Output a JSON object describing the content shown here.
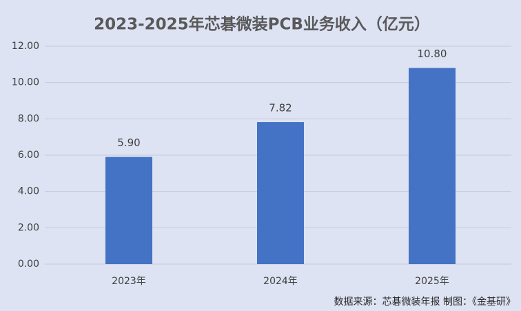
{
  "chart_data": {
    "type": "bar",
    "title": "2023-2025年芯碁微装PCB业务收入（亿元）",
    "categories": [
      "2023年",
      "2024年",
      "2025年"
    ],
    "values": [
      5.9,
      7.82,
      10.8
    ],
    "value_labels": [
      "5.90",
      "7.82",
      "10.80"
    ],
    "color": "#4472c4",
    "ylim": [
      0,
      12
    ],
    "yticks": [
      {
        "value": 0,
        "label": "0.00"
      },
      {
        "value": 2,
        "label": "2.00"
      },
      {
        "value": 4,
        "label": "4.00"
      },
      {
        "value": 6,
        "label": "6.00"
      },
      {
        "value": 8,
        "label": "8.00"
      },
      {
        "value": 10,
        "label": "10.00"
      },
      {
        "value": 12,
        "label": "12.00"
      }
    ],
    "grid": true,
    "source": "数据来源：芯碁微装年报  制图：《金基研》"
  }
}
